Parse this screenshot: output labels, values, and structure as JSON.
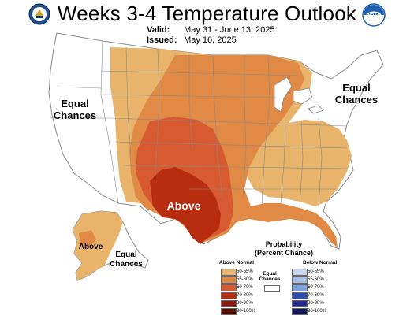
{
  "header": {
    "title": "Weeks 3-4 Temperature Outlook",
    "valid_label": "Valid:",
    "valid_value": "May 31 - June 13, 2025",
    "issued_label": "Issued:",
    "issued_value": "May 16, 2025"
  },
  "logos": {
    "left": "commerce-seal",
    "right": "noaa-logo",
    "right_text": "NOAA"
  },
  "map": {
    "labels": {
      "equal_west": "Equal\nChances",
      "equal_east": "Equal\nChances",
      "above_texas": "Above",
      "above_alaska": "Above",
      "equal_alaska": "Equal\nChances"
    },
    "colors": {
      "state_fill": "#ffffff",
      "state_border": "#8a8a8a",
      "p50_55": "#e8b46c",
      "p55_60": "#e08a45",
      "p60_70": "#d85a30",
      "p70_80": "#b82c10",
      "p80_90": "#8a1a0a",
      "p90_100": "#5a0f05"
    }
  },
  "legend": {
    "title": "Probability\n(Percent Chance)",
    "above_header": "Above Normal",
    "below_header": "Below Normal",
    "equal_label": "Equal\nChances",
    "above_bins": [
      {
        "label": "50-55%",
        "color": "#e8b46c"
      },
      {
        "label": "55-60%",
        "color": "#e08a45"
      },
      {
        "label": "60-70%",
        "color": "#d85a30"
      },
      {
        "label": "70-80%",
        "color": "#b82c10"
      },
      {
        "label": "80-90%",
        "color": "#8a1a0a"
      },
      {
        "label": "90-100%",
        "color": "#5a0f05"
      }
    ],
    "below_bins": [
      {
        "label": "50-55%",
        "color": "#c7d6ec"
      },
      {
        "label": "55-60%",
        "color": "#a6c0e6"
      },
      {
        "label": "60-70%",
        "color": "#7aa2dc"
      },
      {
        "label": "70-80%",
        "color": "#2a4fb0"
      },
      {
        "label": "80-90%",
        "color": "#232b8c"
      },
      {
        "label": "90-100%",
        "color": "#141a5a"
      }
    ]
  }
}
